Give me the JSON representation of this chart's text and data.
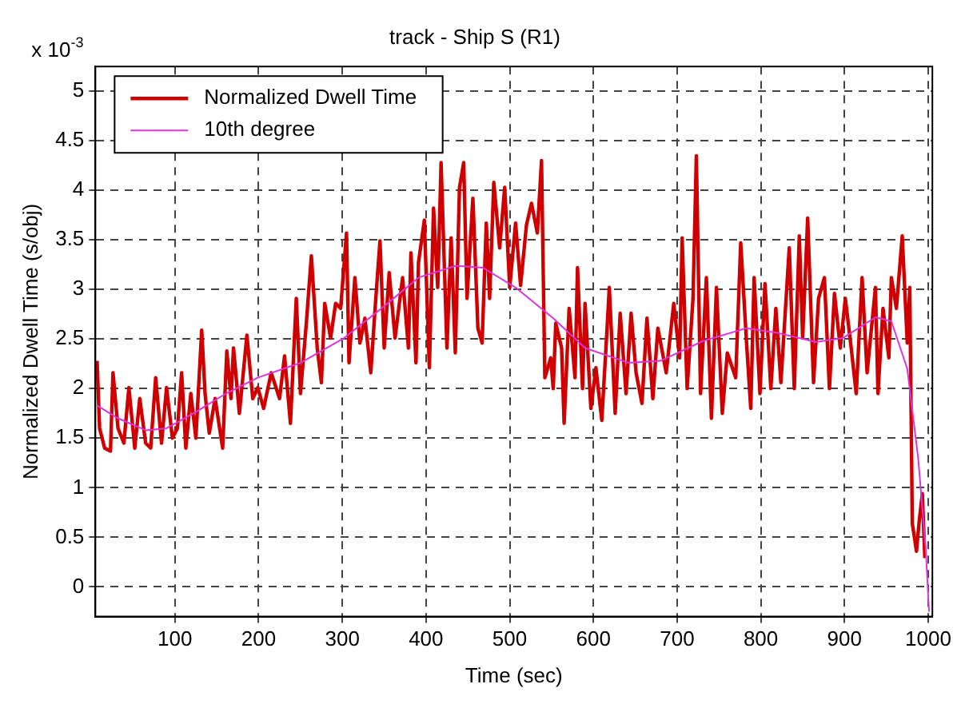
{
  "chart_data": {
    "type": "line",
    "title": "track - Ship S (R1)",
    "xlabel": "Time (sec)",
    "ylabel": "Normalized Dwell Time (s/obj)",
    "annotations": [
      "x 10$^{-3}$"
    ],
    "xlim": [
      5,
      1005
    ],
    "xticks": [
      100,
      200,
      300,
      400,
      500,
      600,
      700,
      800,
      900,
      1000
    ],
    "ylim": [
      -0.3,
      5.25
    ],
    "yticks": [
      0,
      0.5,
      1,
      1.5,
      2,
      2.5,
      3,
      3.5,
      4,
      4.5,
      5
    ],
    "grid": true,
    "legend": "top left",
    "marker": "none",
    "line_style": "solid",
    "series": [
      {
        "name": "Normalized Dwell Time",
        "color": "#d00000",
        "x": [
          7,
          10,
          16,
          23,
          26,
          32,
          39,
          45,
          52,
          58,
          65,
          71,
          77,
          84,
          90,
          97,
          103,
          108,
          113,
          119,
          125,
          132,
          136,
          141,
          148,
          157,
          162,
          167,
          170,
          177,
          186,
          193,
          199,
          206,
          215,
          225,
          231,
          238,
          245,
          250,
          257,
          263,
          270,
          275,
          279,
          286,
          292,
          298,
          305,
          308,
          315,
          321,
          327,
          334,
          340,
          345,
          350,
          356,
          363,
          372,
          379,
          382,
          388,
          391,
          398,
          404,
          409,
          414,
          418,
          425,
          430,
          435,
          440,
          445,
          449,
          456,
          462,
          467,
          472,
          476,
          481,
          488,
          494,
          500,
          507,
          513,
          520,
          526,
          533,
          538,
          542,
          549,
          552,
          555,
          562,
          565,
          571,
          578,
          581,
          587,
          590,
          597,
          603,
          610,
          616,
          619,
          626,
          632,
          639,
          645,
          651,
          658,
          664,
          671,
          677,
          687,
          696,
          703,
          706,
          712,
          719,
          723,
          728,
          735,
          741,
          747,
          754,
          760,
          770,
          776,
          783,
          788,
          792,
          799,
          805,
          812,
          818,
          824,
          834,
          840,
          846,
          850,
          856,
          863,
          869,
          876,
          882,
          888,
          895,
          901,
          908,
          914,
          921,
          927,
          937,
          940,
          946,
          953,
          956,
          962,
          969,
          975,
          978,
          981,
          986,
          989,
          993,
          996
        ],
        "values": [
          2.28,
          1.6,
          1.4,
          1.37,
          2.16,
          1.6,
          1.45,
          2.01,
          1.4,
          1.9,
          1.45,
          1.4,
          2.11,
          1.45,
          2.01,
          1.5,
          1.6,
          2.16,
          1.4,
          1.95,
          1.5,
          2.59,
          1.95,
          1.55,
          1.9,
          1.4,
          2.38,
          1.9,
          2.41,
          1.75,
          2.54,
          1.9,
          2.01,
          1.8,
          2.16,
          1.9,
          2.33,
          1.65,
          2.91,
          1.95,
          2.66,
          3.34,
          2.41,
          2.06,
          2.86,
          2.51,
          2.86,
          2.81,
          3.57,
          2.26,
          3.12,
          2.46,
          2.71,
          2.16,
          2.91,
          3.49,
          2.41,
          3.17,
          2.51,
          3.12,
          2.41,
          3.37,
          2.26,
          3.27,
          3.7,
          2.21,
          3.82,
          3.02,
          4.28,
          2.41,
          3.52,
          2.36,
          4.03,
          4.28,
          2.91,
          3.92,
          2.61,
          2.46,
          3.67,
          2.91,
          4.08,
          3.42,
          4.03,
          3.02,
          3.67,
          3.04,
          3.65,
          3.87,
          3.57,
          4.3,
          2.11,
          2.31,
          2.0,
          2.66,
          2.41,
          1.65,
          2.81,
          2.11,
          3.22,
          2.0,
          2.86,
          1.8,
          2.21,
          1.68,
          2.56,
          3.02,
          1.75,
          2.76,
          1.95,
          2.76,
          2.16,
          1.85,
          2.71,
          1.9,
          2.61,
          2.16,
          2.86,
          2.31,
          3.52,
          2.0,
          2.91,
          4.35,
          1.95,
          3.12,
          1.7,
          3.02,
          1.75,
          2.36,
          2.11,
          3.47,
          2.46,
          1.8,
          3.12,
          1.95,
          3.06,
          2.0,
          2.81,
          2.06,
          3.42,
          2.0,
          3.54,
          2.51,
          3.72,
          2.06,
          2.91,
          3.12,
          2.0,
          2.96,
          2.41,
          2.91,
          2.41,
          1.95,
          3.12,
          2.16,
          3.02,
          1.95,
          2.81,
          2.31,
          3.12,
          2.81,
          3.54,
          2.46,
          3.02,
          0.64,
          0.36,
          0.64,
          0.94,
          0.29
        ]
      },
      {
        "name": "10th degree",
        "color": "#dd33dd",
        "x": [
          7,
          32,
          65,
          90,
          122,
          161,
          199,
          250,
          302,
          347,
          391,
          436,
          468,
          507,
          552,
          590,
          642,
          680,
          731,
          783,
          821,
          866,
          898,
          937,
          956,
          975,
          988,
          997,
          1001
        ],
        "values": [
          1.83,
          1.7,
          1.58,
          1.6,
          1.75,
          1.95,
          2.11,
          2.26,
          2.51,
          2.81,
          3.12,
          3.24,
          3.22,
          3.02,
          2.71,
          2.41,
          2.26,
          2.28,
          2.48,
          2.61,
          2.56,
          2.47,
          2.51,
          2.72,
          2.68,
          2.2,
          1.3,
          0.39,
          -0.25
        ]
      }
    ]
  }
}
